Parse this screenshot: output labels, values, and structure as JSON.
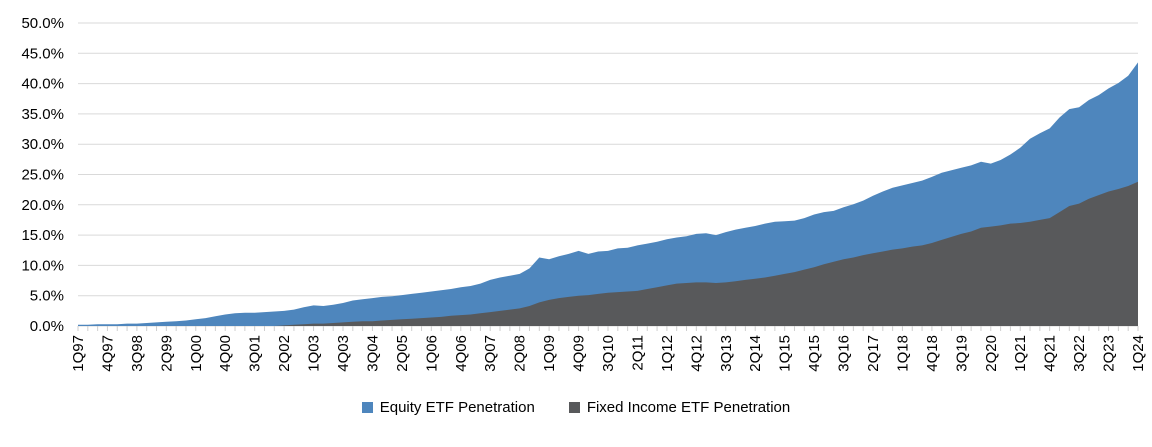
{
  "chart_data": {
    "type": "area",
    "stacked": false,
    "title": "",
    "xlabel": "",
    "ylabel": "",
    "ylim": [
      0,
      50
    ],
    "grid": true,
    "legend_position": "bottom",
    "y_tick_labels": [
      "0.0%",
      "5.0%",
      "10.0%",
      "15.0%",
      "20.0%",
      "25.0%",
      "30.0%",
      "35.0%",
      "40.0%",
      "45.0%",
      "50.0%"
    ],
    "x_tick_every": 3,
    "x": [
      "1Q97",
      "2Q97",
      "3Q97",
      "4Q97",
      "1Q98",
      "2Q98",
      "3Q98",
      "4Q98",
      "1Q99",
      "2Q99",
      "3Q99",
      "4Q99",
      "1Q00",
      "2Q00",
      "3Q00",
      "4Q00",
      "1Q01",
      "2Q01",
      "3Q01",
      "4Q01",
      "1Q02",
      "2Q02",
      "3Q02",
      "4Q02",
      "1Q03",
      "2Q03",
      "3Q03",
      "4Q03",
      "1Q04",
      "2Q04",
      "3Q04",
      "4Q04",
      "1Q05",
      "2Q05",
      "3Q05",
      "4Q05",
      "1Q06",
      "2Q06",
      "3Q06",
      "4Q06",
      "1Q07",
      "2Q07",
      "3Q07",
      "4Q07",
      "1Q08",
      "2Q08",
      "3Q08",
      "4Q08",
      "1Q09",
      "2Q09",
      "3Q09",
      "4Q09",
      "1Q10",
      "2Q10",
      "3Q10",
      "4Q10",
      "1Q11",
      "2Q11",
      "3Q11",
      "4Q11",
      "1Q12",
      "2Q12",
      "3Q12",
      "4Q12",
      "1Q13",
      "2Q13",
      "3Q13",
      "4Q13",
      "1Q14",
      "2Q14",
      "3Q14",
      "4Q14",
      "1Q15",
      "2Q15",
      "3Q15",
      "4Q15",
      "1Q16",
      "2Q16",
      "3Q16",
      "4Q16",
      "1Q17",
      "2Q17",
      "3Q17",
      "4Q17",
      "1Q18",
      "2Q18",
      "3Q18",
      "4Q18",
      "1Q19",
      "2Q19",
      "3Q19",
      "4Q19",
      "1Q20",
      "2Q20",
      "3Q20",
      "4Q20",
      "1Q21",
      "2Q21",
      "3Q21",
      "4Q21",
      "1Q22",
      "2Q22",
      "3Q22",
      "4Q22",
      "1Q23",
      "2Q23",
      "3Q23",
      "4Q23",
      "1Q24"
    ],
    "series": [
      {
        "name": "Equity ETF Penetration",
        "color": "#4E86BD",
        "values": [
          0.2,
          0.2,
          0.3,
          0.3,
          0.3,
          0.4,
          0.4,
          0.5,
          0.6,
          0.7,
          0.8,
          0.9,
          1.1,
          1.3,
          1.6,
          1.9,
          2.1,
          2.2,
          2.2,
          2.3,
          2.4,
          2.5,
          2.7,
          3.1,
          3.4,
          3.3,
          3.5,
          3.8,
          4.2,
          4.4,
          4.6,
          4.8,
          4.9,
          5.1,
          5.3,
          5.5,
          5.7,
          5.9,
          6.1,
          6.4,
          6.6,
          7.0,
          7.6,
          8.0,
          8.3,
          8.6,
          9.5,
          11.3,
          11.0,
          11.5,
          11.9,
          12.4,
          11.9,
          12.3,
          12.4,
          12.8,
          12.9,
          13.3,
          13.6,
          13.9,
          14.3,
          14.6,
          14.8,
          15.2,
          15.3,
          15.0,
          15.5,
          15.9,
          16.2,
          16.5,
          16.9,
          17.2,
          17.3,
          17.4,
          17.8,
          18.4,
          18.8,
          19.0,
          19.6,
          20.1,
          20.7,
          21.5,
          22.2,
          22.8,
          23.2,
          23.6,
          24.0,
          24.6,
          25.3,
          25.7,
          26.1,
          26.5,
          27.1,
          26.8,
          27.4,
          28.3,
          29.4,
          30.9,
          31.8,
          32.6,
          34.4,
          35.8,
          36.1,
          37.3,
          38.1,
          39.2,
          40.1,
          41.3,
          43.5
        ]
      },
      {
        "name": "Fixed Income ETF Penetration",
        "color": "#58595B",
        "values": [
          0,
          0,
          0,
          0,
          0,
          0,
          0,
          0,
          0,
          0,
          0,
          0,
          0,
          0,
          0,
          0,
          0,
          0,
          0,
          0,
          0.0,
          0.1,
          0.2,
          0.3,
          0.4,
          0.4,
          0.5,
          0.6,
          0.7,
          0.8,
          0.8,
          0.9,
          1.0,
          1.1,
          1.2,
          1.3,
          1.4,
          1.5,
          1.7,
          1.8,
          1.9,
          2.1,
          2.3,
          2.5,
          2.7,
          2.9,
          3.3,
          3.9,
          4.3,
          4.6,
          4.8,
          5.0,
          5.1,
          5.3,
          5.5,
          5.6,
          5.7,
          5.8,
          6.1,
          6.4,
          6.7,
          7.0,
          7.1,
          7.2,
          7.2,
          7.1,
          7.2,
          7.4,
          7.6,
          7.8,
          8.0,
          8.3,
          8.6,
          8.9,
          9.3,
          9.7,
          10.2,
          10.6,
          11.0,
          11.3,
          11.7,
          12.0,
          12.3,
          12.6,
          12.8,
          13.1,
          13.3,
          13.7,
          14.2,
          14.7,
          15.2,
          15.6,
          16.2,
          16.4,
          16.6,
          16.9,
          17.0,
          17.2,
          17.5,
          17.8,
          18.8,
          19.8,
          20.2,
          21.0,
          21.6,
          22.2,
          22.6,
          23.1,
          23.8
        ]
      }
    ],
    "colors": {
      "gridline": "#D9D9D9",
      "tick": "#CFCFCF",
      "axis_text": "#000000"
    }
  }
}
